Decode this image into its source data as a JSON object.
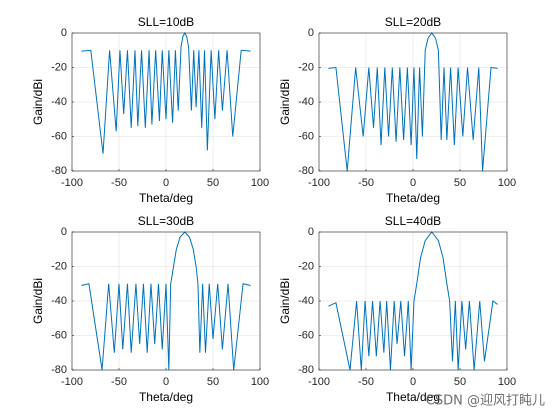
{
  "chart_data": [
    {
      "type": "line",
      "title": "SLL=10dB",
      "xlabel": "Theta/deg",
      "ylabel": "Gain/dBi",
      "color": "#0072bd",
      "grid": true,
      "xlim": [
        -100,
        100
      ],
      "ylim": [
        -80,
        0
      ],
      "xticks": [
        -100,
        -50,
        0,
        50,
        100
      ],
      "yticks": [
        -80,
        -60,
        -40,
        -20,
        0
      ],
      "x": [
        -90,
        -80,
        -67,
        -60,
        -53,
        -49,
        -45,
        -41,
        -37,
        -33,
        -30,
        -26,
        -22,
        -18,
        -15,
        -11,
        -7,
        -4,
        0,
        3,
        7,
        10,
        13,
        16,
        18,
        20,
        22,
        24,
        27,
        29.5,
        32,
        35,
        38,
        41,
        44,
        48,
        52,
        56,
        60,
        65,
        71,
        80,
        90
      ],
      "values": [
        -10.5,
        -10,
        -70,
        -10,
        -57,
        -10,
        -47,
        -10,
        -55,
        -10,
        -54,
        -10,
        -55,
        -10,
        -53,
        -10,
        -51,
        -10,
        -50,
        -10,
        -52,
        -10,
        -45,
        -8,
        -2,
        0,
        -2,
        -8,
        -45,
        -10,
        -43,
        -10,
        -55,
        -10,
        -68,
        -10,
        -50,
        -10,
        -45,
        -10,
        -60,
        -10,
        -10.5
      ]
    },
    {
      "type": "line",
      "title": "SLL=20dB",
      "xlabel": "Theta/deg",
      "ylabel": "Gain/dBi",
      "color": "#0072bd",
      "grid": true,
      "xlim": [
        -100,
        100
      ],
      "ylim": [
        -80,
        0
      ],
      "xticks": [
        -100,
        -50,
        0,
        50,
        100
      ],
      "yticks": [
        -80,
        -60,
        -40,
        -20,
        0
      ],
      "x": [
        -90,
        -82,
        -70,
        -61,
        -53,
        -47,
        -42,
        -38,
        -34,
        -30,
        -26,
        -22,
        -18,
        -14,
        -10,
        -6,
        -2,
        1,
        4,
        7,
        10,
        13,
        16,
        20,
        24,
        27,
        30,
        33,
        36,
        40,
        44,
        48,
        53,
        58,
        64,
        70,
        74,
        83,
        90
      ],
      "values": [
        -20.5,
        -20,
        -80,
        -20,
        -60,
        -20,
        -55,
        -20,
        -65,
        -20,
        -60,
        -20,
        -63,
        -20,
        -62,
        -20,
        -65,
        -20,
        -73,
        -20,
        -60,
        -10,
        -3,
        0,
        -3,
        -10,
        -62,
        -20,
        -62,
        -20,
        -65,
        -20,
        -60,
        -20,
        -62,
        -20,
        -80,
        -20,
        -20.5
      ]
    },
    {
      "type": "line",
      "title": "SLL=30dB",
      "xlabel": "Theta/deg",
      "ylabel": "Gain/dBi",
      "color": "#0072bd",
      "grid": true,
      "xlim": [
        -100,
        100
      ],
      "ylim": [
        -80,
        0
      ],
      "xticks": [
        -100,
        -50,
        0,
        50,
        100
      ],
      "yticks": [
        -80,
        -60,
        -40,
        -20,
        0
      ],
      "x": [
        -90,
        -82,
        -68,
        -61,
        -55,
        -50,
        -46,
        -41,
        -37,
        -32,
        -28,
        -24,
        -20,
        -16,
        -12,
        -8,
        -4,
        0,
        3,
        5,
        8,
        11,
        15,
        20,
        25,
        29,
        32,
        34,
        36,
        39,
        42,
        46,
        50,
        55,
        60,
        66,
        72,
        82,
        90
      ],
      "values": [
        -31,
        -30,
        -80,
        -30,
        -70,
        -30,
        -68,
        -30,
        -70,
        -30,
        -65,
        -30,
        -70,
        -30,
        -65,
        -30,
        -68,
        -30,
        -80,
        -30,
        -20,
        -10,
        -3,
        0,
        -3,
        -10,
        -20,
        -30,
        -70,
        -30,
        -70,
        -30,
        -62,
        -30,
        -68,
        -30,
        -80,
        -30,
        -31
      ]
    },
    {
      "type": "line",
      "title": "SLL=40dB",
      "xlabel": "Theta/deg",
      "ylabel": "Gain/dBi",
      "color": "#0072bd",
      "grid": true,
      "xlim": [
        -100,
        100
      ],
      "ylim": [
        -80,
        0
      ],
      "xticks": [
        -100,
        -50,
        0,
        50,
        100
      ],
      "yticks": [
        -80,
        -60,
        -40,
        -20,
        0
      ],
      "x": [
        -90,
        -82,
        -67,
        -60,
        -55,
        -51,
        -47,
        -43,
        -39,
        -35,
        -31,
        -28,
        -24,
        -20,
        -17,
        -13,
        -9,
        -5,
        -2,
        1,
        4,
        8,
        13,
        20,
        27,
        32,
        36,
        39,
        42,
        45,
        48,
        52,
        56,
        60,
        65,
        71,
        76,
        85,
        90
      ],
      "values": [
        -43,
        -41,
        -80,
        -40,
        -80,
        -40,
        -72,
        -40,
        -72,
        -40,
        -70,
        -40,
        -80,
        -40,
        -65,
        -40,
        -72,
        -40,
        -80,
        -40,
        -30,
        -15,
        -5,
        0,
        -5,
        -15,
        -30,
        -40,
        -75,
        -40,
        -80,
        -40,
        -68,
        -40,
        -80,
        -40,
        -75,
        -40,
        -42
      ]
    }
  ],
  "watermark": "CSDN @迎风打盹儿"
}
